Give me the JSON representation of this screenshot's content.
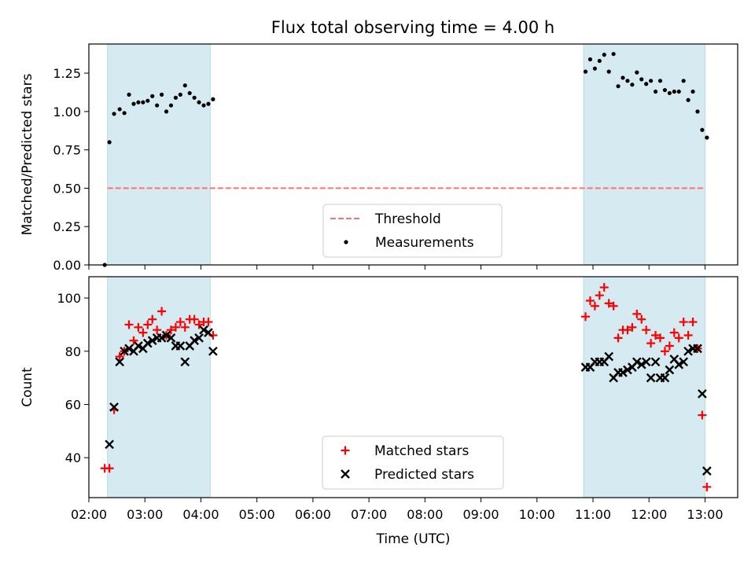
{
  "title": "Flux total observing time = 4.00 h",
  "chart_data": [
    {
      "type": "scatter",
      "panel": "top",
      "ylabel": "Matched/Predicted stars",
      "xlabel": "",
      "xlim": [
        "02:00",
        "13:35"
      ],
      "ylim": [
        0,
        1.44
      ],
      "yticks": [
        0.0,
        0.25,
        0.5,
        0.75,
        1.0,
        1.25
      ],
      "ytick_labels": [
        "0.00",
        "0.25",
        "0.50",
        "0.75",
        "1.00",
        "1.25"
      ],
      "shaded_intervals": [
        [
          "02:20",
          "04:10"
        ],
        [
          "10:50",
          "13:00"
        ]
      ],
      "shade_color": "#d5ebf1",
      "threshold": {
        "label": "Threshold",
        "y": 0.5,
        "x_range": [
          "02:20",
          "13:00"
        ],
        "color": "#ff7070",
        "style": "dashed"
      },
      "measurements": {
        "label": "Measurements",
        "color": "#000000",
        "points": [
          [
            "02:17",
            0.0
          ],
          [
            "02:22",
            0.8
          ],
          [
            "02:27",
            0.985
          ],
          [
            "02:33",
            1.015
          ],
          [
            "02:38",
            0.99
          ],
          [
            "02:43",
            1.11
          ],
          [
            "02:48",
            1.05
          ],
          [
            "02:53",
            1.06
          ],
          [
            "02:58",
            1.06
          ],
          [
            "03:03",
            1.07
          ],
          [
            "03:08",
            1.1
          ],
          [
            "03:13",
            1.04
          ],
          [
            "03:18",
            1.11
          ],
          [
            "03:23",
            1.0
          ],
          [
            "03:28",
            1.04
          ],
          [
            "03:33",
            1.09
          ],
          [
            "03:38",
            1.11
          ],
          [
            "03:43",
            1.17
          ],
          [
            "03:48",
            1.12
          ],
          [
            "03:53",
            1.09
          ],
          [
            "03:58",
            1.06
          ],
          [
            "04:03",
            1.04
          ],
          [
            "04:08",
            1.05
          ],
          [
            "04:13",
            1.08
          ],
          [
            "10:52",
            1.26
          ],
          [
            "10:57",
            1.34
          ],
          [
            "11:02",
            1.28
          ],
          [
            "11:07",
            1.33
          ],
          [
            "11:12",
            1.37
          ],
          [
            "11:17",
            1.26
          ],
          [
            "11:22",
            1.375
          ],
          [
            "11:27",
            1.165
          ],
          [
            "11:32",
            1.22
          ],
          [
            "11:37",
            1.2
          ],
          [
            "11:42",
            1.175
          ],
          [
            "11:47",
            1.255
          ],
          [
            "11:52",
            1.21
          ],
          [
            "11:57",
            1.18
          ],
          [
            "12:02",
            1.2
          ],
          [
            "12:07",
            1.13
          ],
          [
            "12:12",
            1.2
          ],
          [
            "12:17",
            1.14
          ],
          [
            "12:22",
            1.12
          ],
          [
            "12:27",
            1.13
          ],
          [
            "12:32",
            1.13
          ],
          [
            "12:37",
            1.2
          ],
          [
            "12:42",
            1.075
          ],
          [
            "12:47",
            1.13
          ],
          [
            "12:52",
            1.0
          ],
          [
            "12:57",
            0.88
          ],
          [
            "13:02",
            0.83
          ]
        ]
      },
      "legend": {
        "position": "lower center",
        "entries": [
          "Threshold",
          "Measurements"
        ]
      }
    },
    {
      "type": "scatter",
      "panel": "bottom",
      "xlabel": "Time (UTC)",
      "ylabel": "Count",
      "xlim": [
        "02:00",
        "13:35"
      ],
      "ylim": [
        25,
        108
      ],
      "yticks": [
        40,
        60,
        80,
        100
      ],
      "ytick_labels": [
        "40",
        "60",
        "80",
        "100"
      ],
      "xtick_labels": [
        "02:00",
        "03:00",
        "04:00",
        "05:00",
        "06:00",
        "07:00",
        "08:00",
        "09:00",
        "10:00",
        "11:00",
        "12:00",
        "13:00"
      ],
      "shaded_intervals": [
        [
          "02:20",
          "04:10"
        ],
        [
          "10:50",
          "13:00"
        ]
      ],
      "shade_color": "#d5ebf1",
      "series": [
        {
          "name": "Matched stars",
          "marker": "plus",
          "color": "#ff0000",
          "points": [
            [
              "02:17",
              36
            ],
            [
              "02:22",
              36
            ],
            [
              "02:27",
              58
            ],
            [
              "02:33",
              78
            ],
            [
              "02:38",
              80
            ],
            [
              "02:43",
              90
            ],
            [
              "02:48",
              84
            ],
            [
              "02:53",
              89
            ],
            [
              "02:58",
              87
            ],
            [
              "03:03",
              90
            ],
            [
              "03:08",
              92
            ],
            [
              "03:13",
              88
            ],
            [
              "03:18",
              95
            ],
            [
              "03:23",
              86
            ],
            [
              "03:28",
              88
            ],
            [
              "03:33",
              89
            ],
            [
              "03:38",
              91
            ],
            [
              "03:43",
              89
            ],
            [
              "03:48",
              92
            ],
            [
              "03:53",
              92
            ],
            [
              "03:58",
              90
            ],
            [
              "04:03",
              91
            ],
            [
              "04:08",
              91
            ],
            [
              "04:13",
              86
            ],
            [
              "10:52",
              93
            ],
            [
              "10:57",
              99
            ],
            [
              "11:02",
              97
            ],
            [
              "11:07",
              101
            ],
            [
              "11:12",
              104
            ],
            [
              "11:17",
              98
            ],
            [
              "11:22",
              97
            ],
            [
              "11:27",
              85
            ],
            [
              "11:32",
              88
            ],
            [
              "11:37",
              88
            ],
            [
              "11:42",
              89
            ],
            [
              "11:47",
              94
            ],
            [
              "11:52",
              92
            ],
            [
              "11:57",
              88
            ],
            [
              "12:02",
              83
            ],
            [
              "12:07",
              86
            ],
            [
              "12:12",
              85
            ],
            [
              "12:17",
              80
            ],
            [
              "12:22",
              82
            ],
            [
              "12:27",
              87
            ],
            [
              "12:32",
              85
            ],
            [
              "12:37",
              91
            ],
            [
              "12:42",
              86
            ],
            [
              "12:47",
              91
            ],
            [
              "12:52",
              81
            ],
            [
              "12:57",
              56
            ],
            [
              "13:02",
              29
            ]
          ]
        },
        {
          "name": "Predicted stars",
          "marker": "x",
          "color": "#000000",
          "points": [
            [
              "02:22",
              45
            ],
            [
              "02:27",
              59
            ],
            [
              "02:33",
              76
            ],
            [
              "02:38",
              80
            ],
            [
              "02:43",
              81
            ],
            [
              "02:48",
              80
            ],
            [
              "02:53",
              82
            ],
            [
              "02:58",
              81
            ],
            [
              "03:03",
              83
            ],
            [
              "03:08",
              84
            ],
            [
              "03:13",
              85
            ],
            [
              "03:18",
              85
            ],
            [
              "03:23",
              86
            ],
            [
              "03:28",
              85
            ],
            [
              "03:33",
              82
            ],
            [
              "03:38",
              82
            ],
            [
              "03:43",
              76
            ],
            [
              "03:48",
              82
            ],
            [
              "03:53",
              84
            ],
            [
              "03:58",
              85
            ],
            [
              "04:03",
              88
            ],
            [
              "04:08",
              87
            ],
            [
              "04:13",
              80
            ],
            [
              "10:52",
              74
            ],
            [
              "10:57",
              74
            ],
            [
              "11:02",
              76
            ],
            [
              "11:07",
              76
            ],
            [
              "11:12",
              76
            ],
            [
              "11:17",
              78
            ],
            [
              "11:22",
              70
            ],
            [
              "11:27",
              72
            ],
            [
              "11:32",
              72
            ],
            [
              "11:37",
              73
            ],
            [
              "11:42",
              74
            ],
            [
              "11:47",
              76
            ],
            [
              "11:52",
              75
            ],
            [
              "11:57",
              76
            ],
            [
              "12:02",
              70
            ],
            [
              "12:07",
              76
            ],
            [
              "12:12",
              70
            ],
            [
              "12:17",
              70
            ],
            [
              "12:22",
              73
            ],
            [
              "12:27",
              77
            ],
            [
              "12:32",
              75
            ],
            [
              "12:37",
              76
            ],
            [
              "12:42",
              80
            ],
            [
              "12:47",
              81
            ],
            [
              "12:52",
              81
            ],
            [
              "12:57",
              64
            ],
            [
              "13:02",
              35
            ]
          ]
        }
      ],
      "legend": {
        "position": "lower center",
        "entries": [
          "Matched stars",
          "Predicted stars"
        ]
      }
    }
  ]
}
